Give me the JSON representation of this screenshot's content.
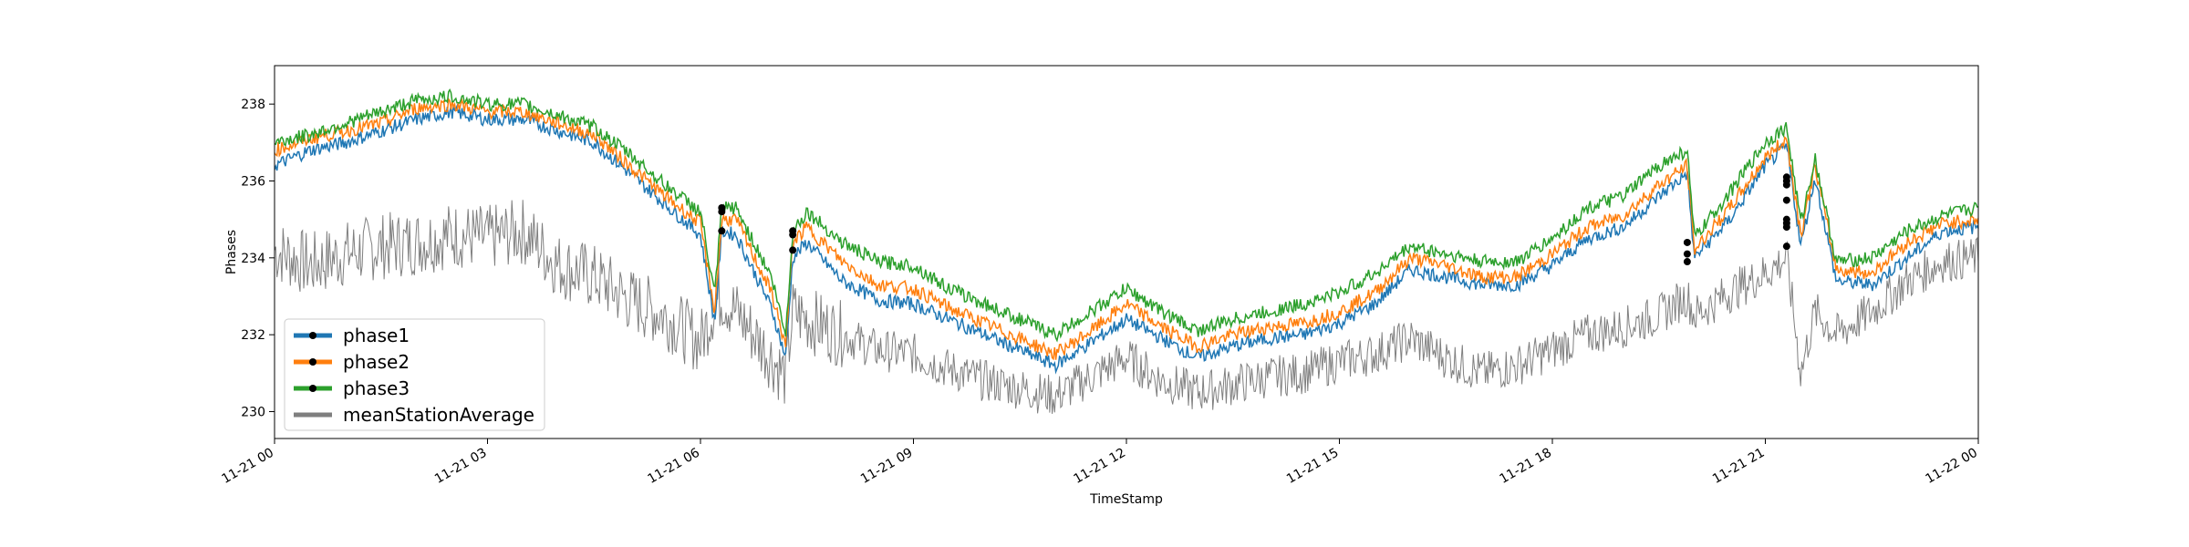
{
  "chart_data": {
    "type": "line",
    "xlabel": "TimeStamp",
    "ylabel": "Phases",
    "x_range": [
      "11-21 00",
      "11-22 00"
    ],
    "ylim": [
      229.3,
      239.0
    ],
    "x_ticks": [
      "11-21 00",
      "11-21 03",
      "11-21 06",
      "11-21 09",
      "11-21 12",
      "11-21 15",
      "11-21 18",
      "11-21 21",
      "11-22 00"
    ],
    "y_ticks": [
      230,
      232,
      234,
      236,
      238
    ],
    "grid": false,
    "legend_position": "lower-left",
    "x_hours": [
      0,
      0.5,
      1,
      1.5,
      2,
      2.5,
      3,
      3.5,
      4,
      4.5,
      5,
      5.5,
      6,
      6.2,
      6.3,
      6.5,
      7,
      7.2,
      7.3,
      7.5,
      8,
      8.5,
      9,
      9.5,
      10,
      10.5,
      11,
      11.5,
      12,
      12.5,
      13,
      13.5,
      14,
      14.5,
      15,
      15.5,
      16,
      16.5,
      17,
      17.5,
      18,
      18.5,
      19,
      19.5,
      19.9,
      20.0,
      20.5,
      21,
      21.3,
      21.5,
      21.7,
      22,
      22.5,
      23,
      23.5,
      24
    ],
    "series": [
      {
        "name": "phase1",
        "color": "#1f77b4",
        "values": [
          236.4,
          236.8,
          237.0,
          237.3,
          237.6,
          237.8,
          237.6,
          237.6,
          237.3,
          237.0,
          236.2,
          235.4,
          234.6,
          232.3,
          234.7,
          234.6,
          232.7,
          231.4,
          234.0,
          234.4,
          233.4,
          232.9,
          232.8,
          232.4,
          232.0,
          231.6,
          231.2,
          231.8,
          232.4,
          231.9,
          231.4,
          231.7,
          231.9,
          232.0,
          232.3,
          232.8,
          233.7,
          233.5,
          233.3,
          233.3,
          233.8,
          234.5,
          234.8,
          235.6,
          236.2,
          234.0,
          235.0,
          236.4,
          236.9,
          234.3,
          236.1,
          233.4,
          233.3,
          234.0,
          234.7,
          234.8
        ]
      },
      {
        "name": "phase2",
        "color": "#ff7f0e",
        "values": [
          236.8,
          237.1,
          237.3,
          237.5,
          237.9,
          238.0,
          237.8,
          237.8,
          237.5,
          237.2,
          236.4,
          235.6,
          234.9,
          232.6,
          235.0,
          235.0,
          233.1,
          231.7,
          234.4,
          234.8,
          233.9,
          233.3,
          233.2,
          232.7,
          232.3,
          231.9,
          231.5,
          232.1,
          232.8,
          232.2,
          231.7,
          232.0,
          232.2,
          232.3,
          232.6,
          233.1,
          234.0,
          233.8,
          233.5,
          233.5,
          234.1,
          234.8,
          235.1,
          235.9,
          236.4,
          234.2,
          235.3,
          236.6,
          237.1,
          234.6,
          236.4,
          233.7,
          233.6,
          234.4,
          234.9,
          235.0
        ]
      },
      {
        "name": "phase3",
        "color": "#2ca02c",
        "values": [
          237.0,
          237.2,
          237.5,
          237.8,
          238.1,
          238.2,
          238.0,
          238.0,
          237.7,
          237.4,
          236.7,
          235.9,
          235.2,
          233.0,
          235.3,
          235.3,
          233.5,
          232.0,
          234.7,
          235.2,
          234.4,
          233.9,
          233.8,
          233.2,
          232.8,
          232.4,
          232.0,
          232.6,
          233.2,
          232.6,
          232.1,
          232.4,
          232.6,
          232.8,
          233.1,
          233.6,
          234.3,
          234.1,
          233.9,
          233.9,
          234.5,
          235.3,
          235.6,
          236.4,
          236.8,
          234.5,
          235.7,
          237.0,
          237.4,
          234.9,
          236.6,
          233.9,
          234.0,
          234.7,
          235.1,
          235.3
        ]
      },
      {
        "name": "meanStationAverage",
        "color": "#7f7f7f",
        "values": [
          234.2,
          233.8,
          234.1,
          234.3,
          234.4,
          234.6,
          234.5,
          234.7,
          233.8,
          233.5,
          232.9,
          232.5,
          231.8,
          232.8,
          233.0,
          232.6,
          231.4,
          230.9,
          232.6,
          232.4,
          232.0,
          231.6,
          231.5,
          231.1,
          230.8,
          230.6,
          230.4,
          230.9,
          231.4,
          230.8,
          230.5,
          230.7,
          230.9,
          231.0,
          231.3,
          231.5,
          231.9,
          231.4,
          231.0,
          231.2,
          231.6,
          232.0,
          232.2,
          232.5,
          233.0,
          232.5,
          233.1,
          233.6,
          234.0,
          231.0,
          232.6,
          232.0,
          232.6,
          233.4,
          233.9,
          234.0
        ]
      }
    ],
    "markers": {
      "phase1": [
        [
          6.3,
          234.7
        ],
        [
          7.3,
          234.2
        ],
        [
          19.9,
          233.9
        ],
        [
          21.3,
          234.3
        ],
        [
          21.3,
          234.9
        ],
        [
          21.3,
          235.5
        ],
        [
          21.3,
          236.0
        ]
      ],
      "phase2": [
        [
          6.3,
          235.2
        ],
        [
          7.3,
          234.6
        ],
        [
          19.9,
          234.1
        ],
        [
          21.3,
          234.8
        ],
        [
          21.3,
          235.9
        ]
      ],
      "phase3": [
        [
          6.3,
          235.3
        ],
        [
          7.3,
          234.7
        ],
        [
          19.9,
          234.4
        ],
        [
          21.3,
          235.0
        ],
        [
          21.3,
          236.1
        ]
      ]
    }
  }
}
